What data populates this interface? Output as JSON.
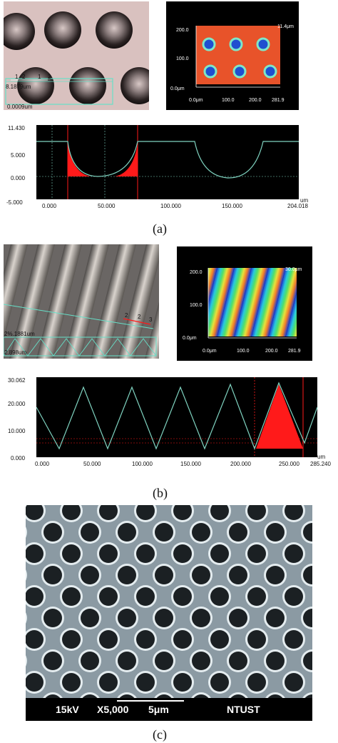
{
  "panel_a": {
    "label": "(a)",
    "micrograph": {
      "scale_label": "0.0009um",
      "ruler_labels": [
        "1",
        "2",
        "1",
        "2"
      ],
      "measure_label": "8.1879um"
    },
    "map3d": {
      "top_value": "11.4μm",
      "bottom_value": "0.0μm",
      "y_ticks": [
        "200.0",
        "100.0",
        "0.0μm"
      ],
      "x_ticks": [
        "0.0μm",
        "100.0",
        "200.0",
        "281.9"
      ]
    },
    "profile": {
      "unit": "um",
      "y_ticks": [
        "11.430",
        "5.000",
        "0.000",
        "-5.000"
      ],
      "x_ticks": [
        "0.000",
        "50.000",
        "100.000",
        "150.000",
        "204.018"
      ]
    }
  },
  "panel_b": {
    "label": "(b)",
    "micrograph": {
      "measure_labels": [
        "2%.1881um",
        "2.898um"
      ],
      "ruler_labels": [
        "2",
        "2",
        "3"
      ]
    },
    "map3d": {
      "top_value": "30.0μm",
      "y_ticks": [
        "200.0",
        "100.0",
        "0.0μm"
      ],
      "x_ticks": [
        "0.0μm",
        "100.0",
        "200.0",
        "281.9"
      ]
    },
    "profile": {
      "unit": "um",
      "y_ticks": [
        "30.062",
        "20.000",
        "10.000",
        "0.000"
      ],
      "x_ticks": [
        "0.000",
        "50.000",
        "100.000",
        "150.000",
        "200.000",
        "250.000",
        "285.240"
      ]
    }
  },
  "panel_c": {
    "label": "(c)",
    "sem_bar": {
      "voltage": "15kV",
      "magnification": "X5,000",
      "scale": "5μm",
      "institution": "NTUST"
    }
  },
  "colors": {
    "profile_line": "#7fd3c0",
    "highlight": "#ff1a1a",
    "sem_background": "#8b9aa3"
  }
}
